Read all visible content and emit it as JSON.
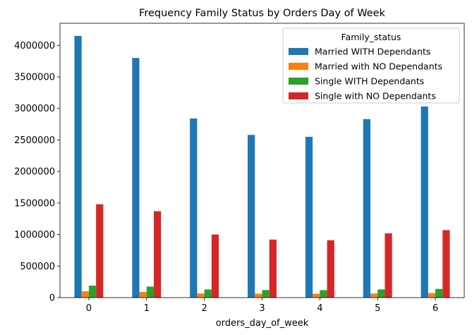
{
  "chart_data": {
    "type": "bar",
    "title": "Frequency Family Status by Orders Day of Week",
    "xlabel": "orders_day_of_week",
    "ylabel": "",
    "categories": [
      "0",
      "1",
      "2",
      "3",
      "4",
      "5",
      "6"
    ],
    "ylim": [
      0,
      4350000
    ],
    "yticks": [
      0,
      500000,
      1000000,
      1500000,
      2000000,
      2500000,
      3000000,
      3500000,
      4000000
    ],
    "legend": {
      "title": "Family_status",
      "placement": "top-right"
    },
    "series": [
      {
        "name": "Married WITH Dependants",
        "color": "#1f77b4",
        "values": [
          4150000,
          3800000,
          2840000,
          2580000,
          2550000,
          2830000,
          3030000
        ]
      },
      {
        "name": "Married with NO Dependants",
        "color": "#ff7f0e",
        "values": [
          100000,
          90000,
          65000,
          62000,
          62000,
          65000,
          72000
        ]
      },
      {
        "name": "Single WITH Dependants",
        "color": "#2ca02c",
        "values": [
          190000,
          175000,
          130000,
          120000,
          118000,
          130000,
          138000
        ]
      },
      {
        "name": "Single with NO Dependants",
        "color": "#d62728",
        "values": [
          1480000,
          1370000,
          1000000,
          920000,
          910000,
          1020000,
          1070000
        ]
      }
    ]
  }
}
